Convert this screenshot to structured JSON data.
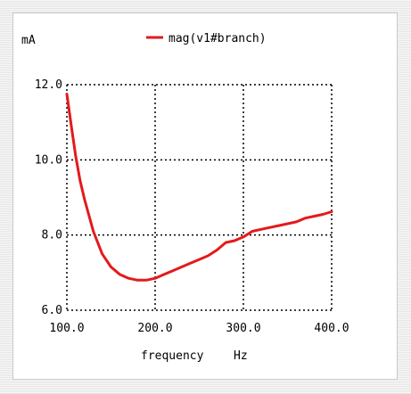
{
  "chart_data": {
    "type": "line",
    "y_unit_label": "mA",
    "xlabel": "frequency",
    "xunit": "Hz",
    "xlim": [
      100,
      400
    ],
    "ylim": [
      6.0,
      12.0
    ],
    "x_ticks": [
      100,
      200,
      300,
      400
    ],
    "x_tick_labels": [
      "100.0",
      "200.0",
      "300.0",
      "400.0"
    ],
    "y_ticks": [
      6,
      8,
      10,
      12
    ],
    "y_tick_labels": [
      "6.0",
      "8.0",
      "10.0",
      "12.0"
    ],
    "grid": true,
    "legend_position": "top-center",
    "series": [
      {
        "name": "mag(v1#branch)",
        "color": "#e31a1c",
        "x": [
          100,
          105,
          110,
          115,
          120,
          130,
          140,
          150,
          160,
          170,
          180,
          190,
          200,
          210,
          220,
          230,
          240,
          250,
          260,
          270,
          280,
          290,
          300,
          310,
          320,
          330,
          340,
          350,
          360,
          370,
          380,
          390,
          400
        ],
        "y": [
          11.75,
          10.9,
          10.1,
          9.45,
          8.95,
          8.1,
          7.5,
          7.15,
          6.95,
          6.85,
          6.8,
          6.8,
          6.85,
          6.95,
          7.05,
          7.15,
          7.25,
          7.35,
          7.45,
          7.6,
          7.8,
          7.85,
          7.95,
          8.1,
          8.15,
          8.2,
          8.25,
          8.3,
          8.35,
          8.45,
          8.5,
          8.55,
          8.62
        ]
      }
    ]
  }
}
